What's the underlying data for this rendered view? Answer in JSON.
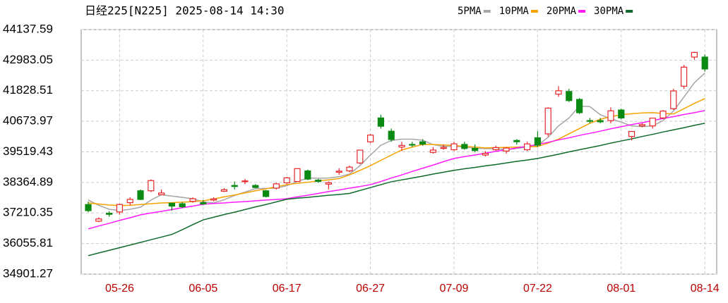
{
  "chart_data": {
    "type": "candlestick",
    "title": "日经225[N225] 2025-08-14 14:30",
    "categories": [
      null,
      null,
      null,
      "05-26",
      null,
      null,
      null,
      null,
      null,
      null,
      null,
      "06-05",
      null,
      null,
      null,
      null,
      null,
      null,
      null,
      "06-17",
      null,
      null,
      null,
      null,
      null,
      null,
      null,
      "06-27",
      null,
      null,
      null,
      null,
      null,
      null,
      null,
      "07-09",
      null,
      null,
      null,
      null,
      null,
      null,
      null,
      "07-22",
      null,
      null,
      null,
      null,
      null,
      null,
      null,
      "08-01",
      null,
      null,
      null,
      null,
      null,
      null,
      null,
      "08-14"
    ],
    "open": [
      37530,
      36900,
      37200,
      37250,
      37600,
      38050,
      38050,
      37900,
      37580,
      37560,
      37650,
      37600,
      37700,
      38030,
      38250,
      38400,
      38250,
      38050,
      38150,
      38350,
      38400,
      38800,
      38450,
      38300,
      38750,
      38800,
      39100,
      39900,
      40800,
      40300,
      39700,
      39800,
      39900,
      39500,
      39650,
      39600,
      39800,
      39650,
      39400,
      39600,
      39550,
      39950,
      39600,
      40050,
      40200,
      41700,
      41800,
      41500,
      40700,
      40700,
      40700,
      41100,
      40100,
      40500,
      40500,
      40800,
      41150,
      42000,
      43100,
      43100
    ],
    "high": [
      37640,
      37050,
      37280,
      37560,
      37800,
      38100,
      38480,
      38100,
      37600,
      37620,
      37800,
      37700,
      37800,
      38150,
      38400,
      38500,
      38300,
      38080,
      38350,
      38570,
      38900,
      38850,
      38500,
      38400,
      38900,
      39000,
      39600,
      40200,
      40920,
      40400,
      39900,
      39900,
      40000,
      39700,
      39800,
      39900,
      39900,
      39800,
      39550,
      39750,
      39700,
      40000,
      39900,
      40300,
      41200,
      42000,
      41900,
      41550,
      40800,
      40800,
      41200,
      41150,
      40300,
      40600,
      40800,
      41100,
      41900,
      42800,
      43300,
      43200
    ],
    "low": [
      37240,
      36860,
      37070,
      37150,
      37500,
      37700,
      38000,
      37880,
      37300,
      37400,
      37600,
      37500,
      37650,
      38000,
      38100,
      38300,
      38150,
      37800,
      38100,
      38300,
      38380,
      38450,
      38350,
      38100,
      38650,
      38750,
      39050,
      39850,
      40400,
      39900,
      39550,
      39700,
      39750,
      39450,
      39600,
      39550,
      39600,
      39500,
      39350,
      39550,
      39450,
      39800,
      39550,
      39700,
      40100,
      41600,
      41400,
      40950,
      40600,
      40600,
      40600,
      40750,
      39950,
      40450,
      40400,
      40750,
      41100,
      41900,
      43000,
      42550
    ],
    "close": [
      37299,
      36985,
      37160,
      37532,
      37724,
      37722,
      38433,
      37965,
      37470,
      37446,
      37747,
      37554,
      37742,
      38089,
      38211,
      38421,
      38173,
      37834,
      38311,
      38537,
      38885,
      38489,
      38403,
      38354,
      38791,
      38942,
      39585,
      40151,
      40487,
      39986,
      39762,
      39786,
      39811,
      39588,
      39689,
      39821,
      39646,
      39570,
      39459,
      39679,
      39663,
      39901,
      39819,
      39775,
      41171,
      41826,
      41456,
      40998,
      40675,
      40654,
      41069,
      40800,
      40290,
      40549,
      40794,
      41059,
      41820,
      42718,
      43275,
      42649
    ],
    "up_color": "#e8262a",
    "down_color": "#0a8a12",
    "series": [
      {
        "name": "5PMA",
        "color": "#a6a6a6",
        "values": [
          37700,
          37500,
          37350,
          37300,
          37350,
          37430,
          37700,
          37900,
          37850,
          37800,
          37750,
          37630,
          37590,
          37710,
          37870,
          38000,
          38130,
          38140,
          38150,
          38240,
          38400,
          38530,
          38520,
          38530,
          38580,
          38680,
          39000,
          39400,
          39770,
          39950,
          40000,
          40000,
          39960,
          39790,
          39730,
          39730,
          39710,
          39660,
          39640,
          39640,
          39600,
          39650,
          39700,
          39760,
          40070,
          40500,
          40800,
          41250,
          41230,
          40920,
          40770,
          40640,
          40500,
          40470,
          40500,
          40700,
          41060,
          41590,
          42130,
          42500
        ]
      },
      {
        "name": "10PMA",
        "color": "#f5a300",
        "values": [
          37590,
          37550,
          37510,
          37490,
          37500,
          37530,
          37560,
          37590,
          37600,
          37620,
          37640,
          37670,
          37740,
          37820,
          37890,
          37970,
          38050,
          38120,
          38200,
          38280,
          38330,
          38370,
          38420,
          38460,
          38510,
          38650,
          38820,
          39000,
          39200,
          39400,
          39590,
          39700,
          39800,
          39800,
          39780,
          39760,
          39730,
          39700,
          39670,
          39680,
          39690,
          39700,
          39710,
          39720,
          39850,
          40000,
          40200,
          40400,
          40600,
          40750,
          40850,
          40920,
          40960,
          40990,
          41000,
          40970,
          40950,
          41150,
          41350,
          41530
        ]
      },
      {
        "name": "20PMA",
        "color": "#ff1aff",
        "values": [
          36610,
          36720,
          36820,
          36930,
          37030,
          37140,
          37210,
          37270,
          37340,
          37410,
          37470,
          37540,
          37570,
          37590,
          37620,
          37640,
          37670,
          37700,
          37720,
          37750,
          37820,
          37880,
          37950,
          38020,
          38080,
          38150,
          38210,
          38280,
          38400,
          38530,
          38650,
          38780,
          38900,
          39020,
          39150,
          39270,
          39340,
          39400,
          39470,
          39540,
          39600,
          39670,
          39730,
          39800,
          39880,
          39970,
          40050,
          40140,
          40220,
          40300,
          40390,
          40470,
          40550,
          40620,
          40700,
          40780,
          40850,
          40930,
          41000,
          41080
        ]
      },
      {
        "name": "30PMA",
        "color": "#0e6b2c",
        "values": [
          35600,
          35700,
          35800,
          35900,
          36000,
          36100,
          36200,
          36300,
          36400,
          36580,
          36770,
          36950,
          37050,
          37150,
          37240,
          37340,
          37440,
          37530,
          37630,
          37730,
          37770,
          37800,
          37840,
          37880,
          37910,
          37950,
          38060,
          38170,
          38280,
          38390,
          38460,
          38530,
          38600,
          38680,
          38750,
          38820,
          38880,
          38930,
          38990,
          39040,
          39100,
          39160,
          39210,
          39270,
          39350,
          39430,
          39520,
          39600,
          39680,
          39760,
          39850,
          39930,
          40010,
          40100,
          40180,
          40270,
          40350,
          40430,
          40520,
          40600
        ]
      }
    ],
    "ylim": [
      34901.27,
      44137.59
    ],
    "yticks": [
      34901.27,
      36055.81,
      37210.35,
      38364.89,
      39519.43,
      40673.97,
      41828.51,
      42983.05,
      44137.59
    ],
    "grid": true
  }
}
